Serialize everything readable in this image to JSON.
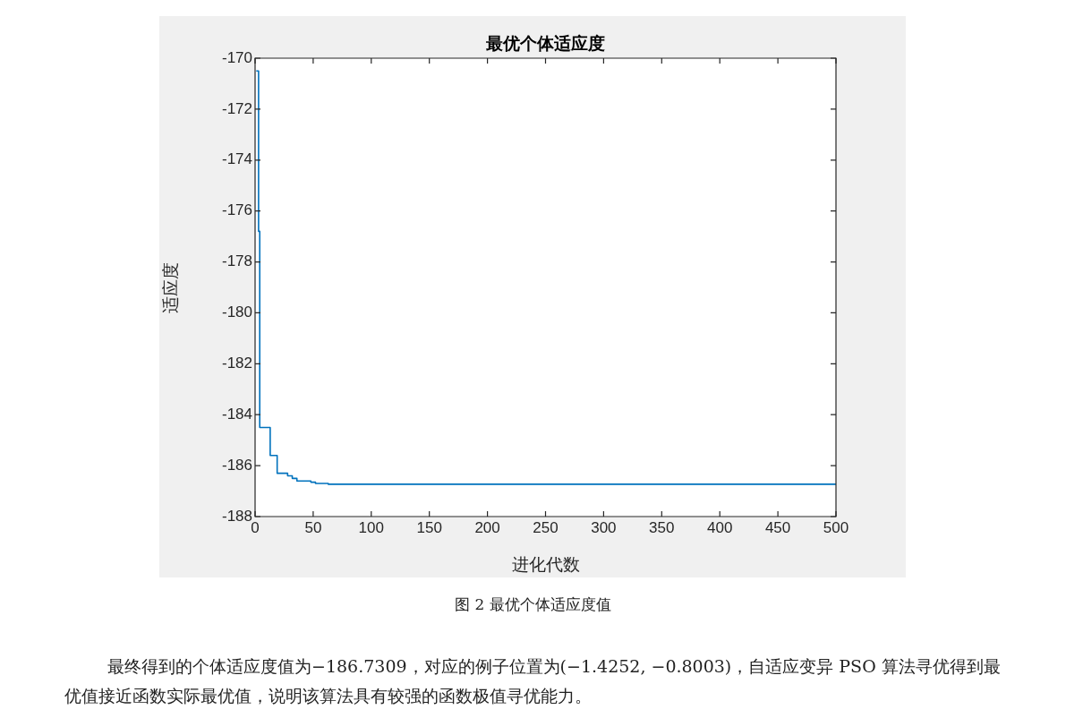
{
  "chart_data": {
    "type": "step",
    "title": "最优个体适应度",
    "xlabel": "进化代数",
    "ylabel": "适应度",
    "x": [
      1,
      3,
      4,
      13,
      19,
      28,
      32,
      36,
      48,
      52,
      63,
      500
    ],
    "series": [
      {
        "color": "#0072bd",
        "values": [
          -170.5,
          -176.8,
          -184.5,
          -185.6,
          -186.3,
          -186.4,
          -186.5,
          -186.6,
          -186.65,
          -186.7,
          -186.73,
          -186.73
        ]
      }
    ],
    "xlim": [
      0,
      500
    ],
    "xticks": [
      0,
      50,
      100,
      150,
      200,
      250,
      300,
      350,
      400,
      450,
      500
    ],
    "ylim": [
      -188,
      -170
    ],
    "yticks": [
      -188,
      -186,
      -184,
      -182,
      -180,
      -178,
      -176,
      -174,
      -172,
      -170
    ],
    "grid": false,
    "legend": false,
    "marker": "none",
    "line_style": "solid",
    "annotations": [
      "图 2  最优个体适应度值",
      "最终得到的个体适应度值为−186.7309，对应的例子位置为(−1.4252, −0.8003)，自适应变异 PSO 算法寻优得到最优值接近函数实际最优值，说明该算法具有较强的函数极值寻优能力。"
    ]
  }
}
